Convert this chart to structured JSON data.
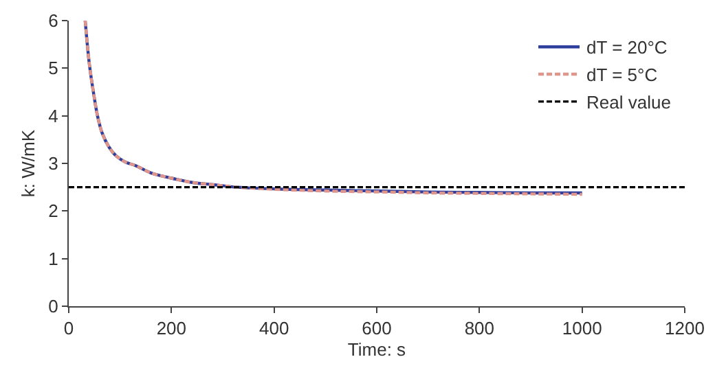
{
  "chart_data": {
    "type": "line",
    "xlabel": "Time: s",
    "ylabel": "k: W/mK",
    "xlim": [
      0,
      1200
    ],
    "xticks": [
      0,
      200,
      400,
      600,
      800,
      1000,
      1200
    ],
    "ylim": [
      0,
      6
    ],
    "yticks": [
      0,
      1,
      2,
      3,
      4,
      5,
      6
    ],
    "legend": "top right",
    "marker": "none",
    "series": [
      {
        "name": "dT = 20°C",
        "color": "#2e3f9e",
        "line_style": "solid",
        "x": [
          32,
          40,
          48,
          56,
          65,
          78,
          92,
          110,
          131,
          160,
          196,
          240,
          284,
          328,
          415,
          500,
          607,
          700,
          800,
          900,
          1000
        ],
        "values": [
          6.0,
          5.1,
          4.5,
          4.0,
          3.64,
          3.35,
          3.16,
          3.03,
          2.95,
          2.8,
          2.7,
          2.6,
          2.55,
          2.5,
          2.46,
          2.44,
          2.42,
          2.4,
          2.39,
          2.38,
          2.38
        ]
      },
      {
        "name": "dT = 5°C",
        "color": "#e0958a",
        "line_style": "dashed",
        "x": [
          32,
          40,
          48,
          56,
          65,
          78,
          92,
          110,
          131,
          160,
          196,
          240,
          284,
          328,
          415,
          500,
          607,
          700,
          800,
          900,
          1000
        ],
        "values": [
          6.0,
          5.1,
          4.5,
          4.0,
          3.64,
          3.35,
          3.16,
          3.03,
          2.95,
          2.8,
          2.7,
          2.6,
          2.55,
          2.5,
          2.45,
          2.42,
          2.4,
          2.38,
          2.37,
          2.36,
          2.35
        ]
      }
    ],
    "ref_lines": [
      {
        "axis": "y",
        "value": 2.5,
        "label": "Real value",
        "color": "#000000",
        "line_style": "dashed"
      }
    ]
  }
}
